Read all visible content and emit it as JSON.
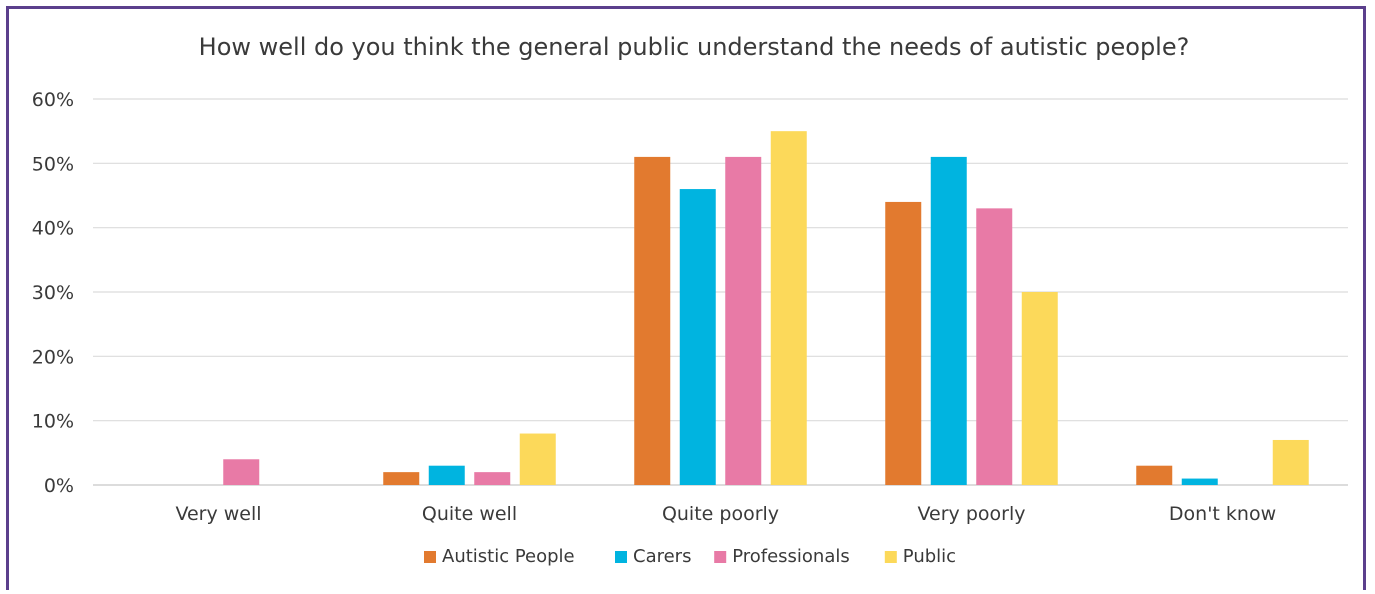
{
  "chart_data": {
    "type": "bar",
    "title": "How well do you think the general public understand the needs of autistic people?",
    "xlabel": "",
    "ylabel": "",
    "categories": [
      "Very well",
      "Quite well",
      "Quite poorly",
      "Very poorly",
      "Don't know"
    ],
    "series": [
      {
        "name": "Autistic People",
        "color": "#e27a2f",
        "values": [
          0,
          2,
          51,
          44,
          3
        ]
      },
      {
        "name": "Carers",
        "color": "#00b4e0",
        "values": [
          0,
          3,
          46,
          51,
          1
        ]
      },
      {
        "name": "Professionals",
        "color": "#e87aa6",
        "values": [
          4,
          2,
          51,
          43,
          0
        ]
      },
      {
        "name": "Public",
        "color": "#fcd95a",
        "values": [
          0,
          8,
          55,
          30,
          7
        ]
      }
    ],
    "ylim": [
      0,
      60
    ],
    "yticks": [
      "0%",
      "10%",
      "20%",
      "30%",
      "40%",
      "50%",
      "60%"
    ],
    "grid": true,
    "legend_position": "bottom",
    "frame_color": "#5b3f8c"
  }
}
